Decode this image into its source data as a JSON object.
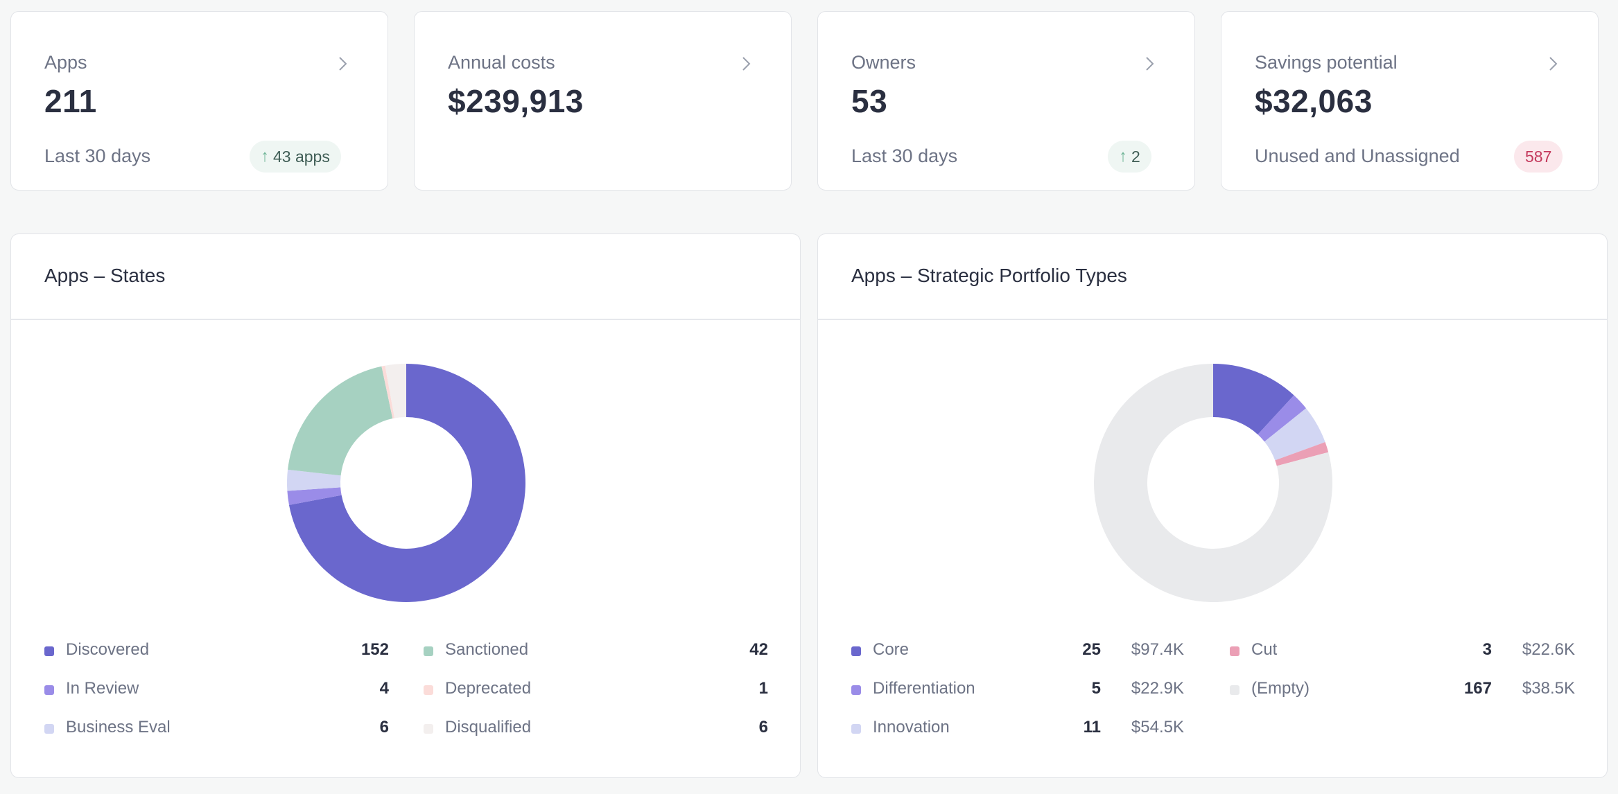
{
  "kpis": [
    {
      "label": "Apps",
      "value": "211",
      "foot": "Last 30 days",
      "badge": "43 apps"
    },
    {
      "label": "Annual costs",
      "value": "$239,913"
    },
    {
      "label": "Owners",
      "value": "53",
      "foot": "Last 30 days",
      "badge": "2"
    },
    {
      "label": "Savings potential",
      "value": "$32,063",
      "foot": "Unused and Unassigned",
      "badge": "587"
    }
  ],
  "states": {
    "title": "Apps – States",
    "items": [
      {
        "label": "Discovered",
        "count": "152",
        "color": "#6a67cd"
      },
      {
        "label": "In Review",
        "count": "4",
        "color": "#9a8ce8"
      },
      {
        "label": "Business Eval",
        "count": "6",
        "color": "#d2d6f3"
      },
      {
        "label": "Sanctioned",
        "count": "42",
        "color": "#a6d1c1"
      },
      {
        "label": "Deprecated",
        "count": "1",
        "color": "#fbdcd9"
      },
      {
        "label": "Disqualified",
        "count": "6",
        "color": "#f3efee"
      }
    ]
  },
  "portfolio": {
    "title": "Apps – Strategic Portfolio Types",
    "items": [
      {
        "label": "Core",
        "count": "25",
        "cost": "$97.4K",
        "color": "#6a67cd"
      },
      {
        "label": "Differentiation",
        "count": "5",
        "cost": "$22.9K",
        "color": "#9a8ce8"
      },
      {
        "label": "Innovation",
        "count": "11",
        "cost": "$54.5K",
        "color": "#d2d6f3"
      },
      {
        "label": "Cut",
        "count": "3",
        "cost": "$22.6K",
        "color": "#eb9fb5"
      },
      {
        "label": "(Empty)",
        "count": "167",
        "cost": "$38.5K",
        "color": "#e9eaec"
      }
    ]
  },
  "chart_data": [
    {
      "type": "pie",
      "title": "Apps – States",
      "categories": [
        "Discovered",
        "In Review",
        "Business Eval",
        "Sanctioned",
        "Deprecated",
        "Disqualified"
      ],
      "values": [
        152,
        4,
        6,
        42,
        1,
        6
      ]
    },
    {
      "type": "pie",
      "title": "Apps – Strategic Portfolio Types",
      "categories": [
        "Core",
        "Differentiation",
        "Innovation",
        "Cut",
        "(Empty)"
      ],
      "values": [
        25,
        5,
        11,
        3,
        167
      ]
    }
  ]
}
